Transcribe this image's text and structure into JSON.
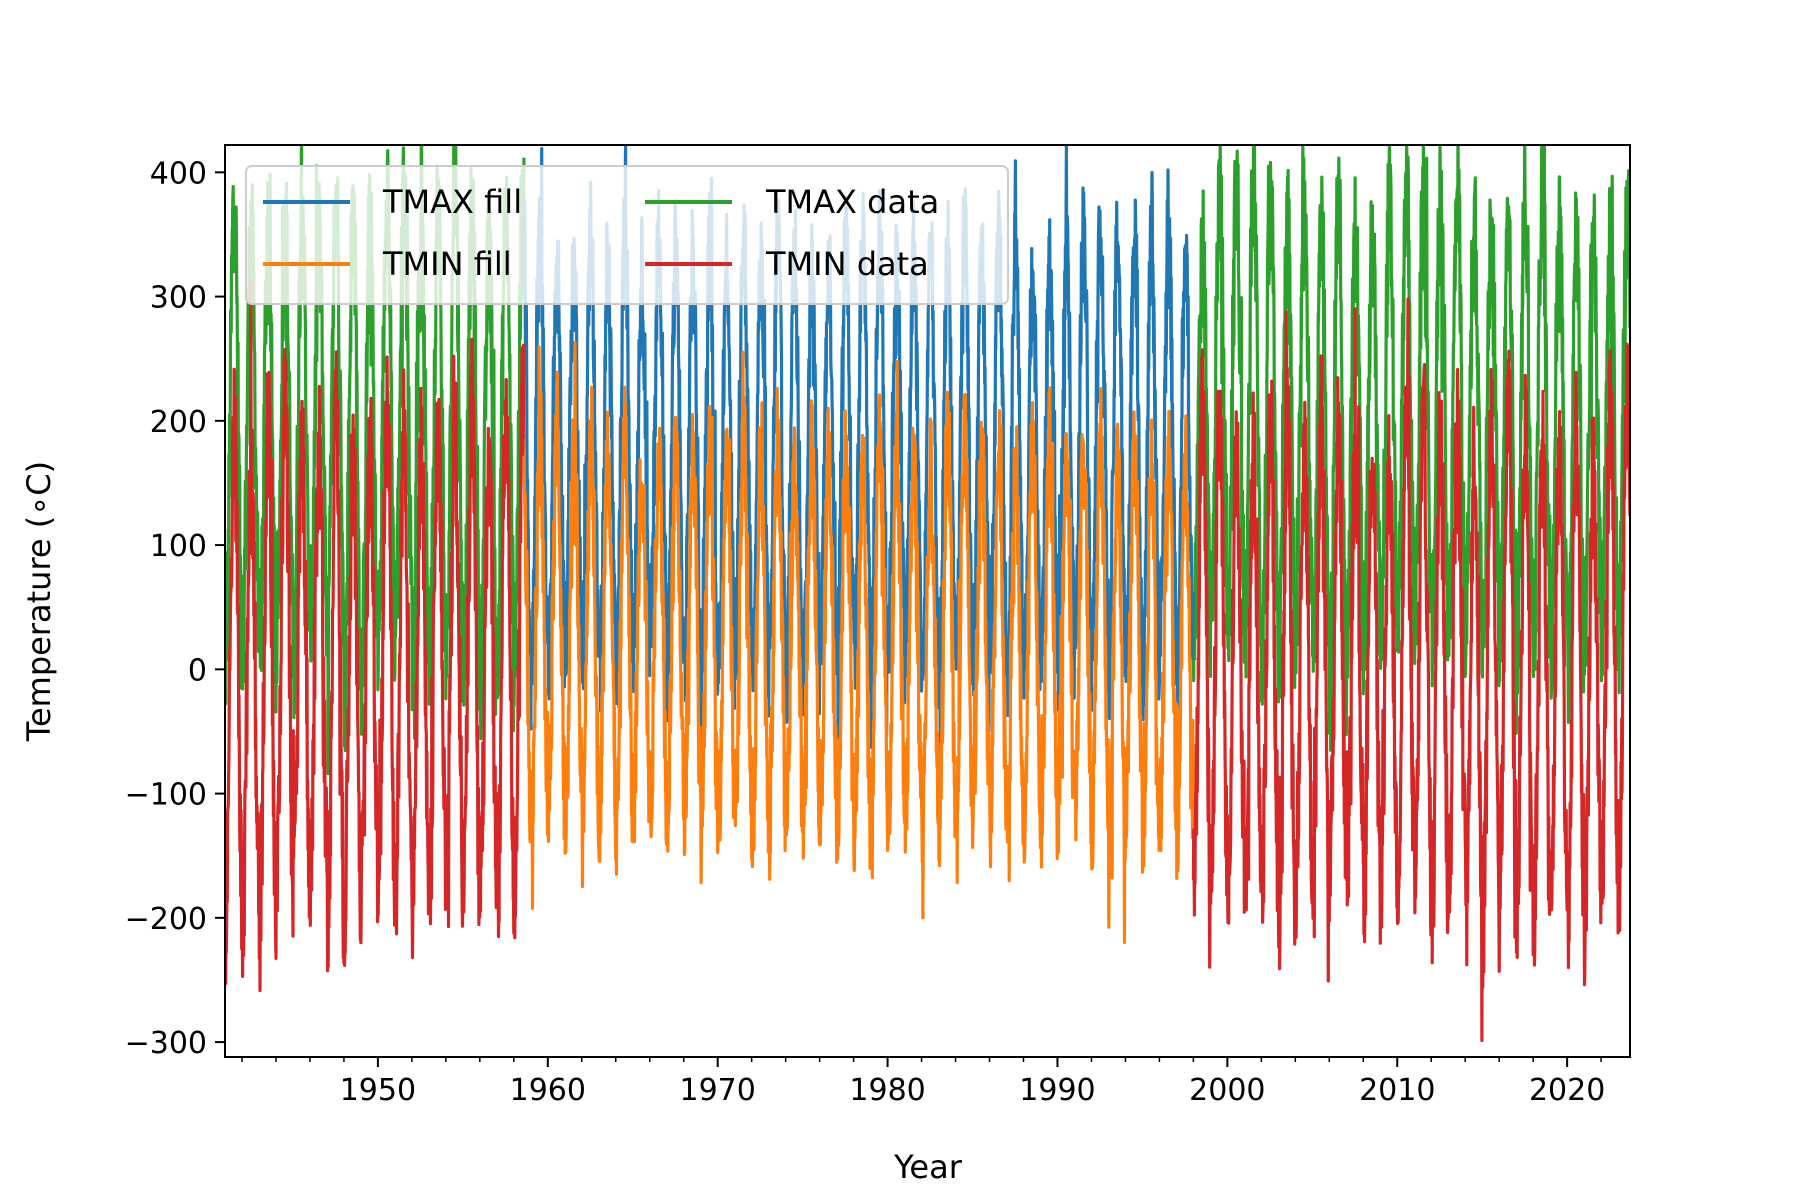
{
  "chart_data": {
    "type": "line",
    "xlabel": "Year",
    "ylabel": "Temperature (∘C)",
    "xlim": [
      1941,
      2023.7
    ],
    "ylim": [
      -312,
      422
    ],
    "xticks": [
      1950,
      1960,
      1970,
      1980,
      1990,
      2000,
      2010,
      2020
    ],
    "xtick_labels": [
      "1950",
      "1960",
      "1970",
      "1980",
      "1990",
      "2000",
      "2010",
      "2020"
    ],
    "yticks": [
      400,
      300,
      200,
      100,
      0,
      -100,
      -200,
      -300
    ],
    "ytick_labels": [
      "400",
      "300",
      "200",
      "100",
      "0",
      "−100",
      "−200",
      "−300"
    ],
    "grid": false,
    "legend_position": "top-left",
    "legend_columns": 2,
    "series": [
      {
        "name": "TMAX fill",
        "color": "#1f77b4",
        "x_range": [
          1958.6,
          1998.0
        ],
        "annual_peak_approx": 340,
        "annual_trough_approx": 10
      },
      {
        "name": "TMIN fill",
        "color": "#ff7f0e",
        "x_range": [
          1958.6,
          1998.0
        ],
        "annual_peak_approx": 175,
        "annual_trough_approx": -120
      },
      {
        "name": "TMAX data",
        "color": "#2ca02c",
        "x_ranges": [
          [
            1941.0,
            1958.6
          ],
          [
            1998.0,
            2023.7
          ]
        ],
        "annual_peak_approx": 370,
        "annual_trough_approx": 20
      },
      {
        "name": "TMIN data",
        "color": "#d62728",
        "x_ranges": [
          [
            1941.0,
            1958.6
          ],
          [
            1998.0,
            2023.7
          ]
        ],
        "annual_peak_approx": 190,
        "annual_trough_approx": -180,
        "min_value": -278,
        "max_value": 228
      }
    ]
  }
}
